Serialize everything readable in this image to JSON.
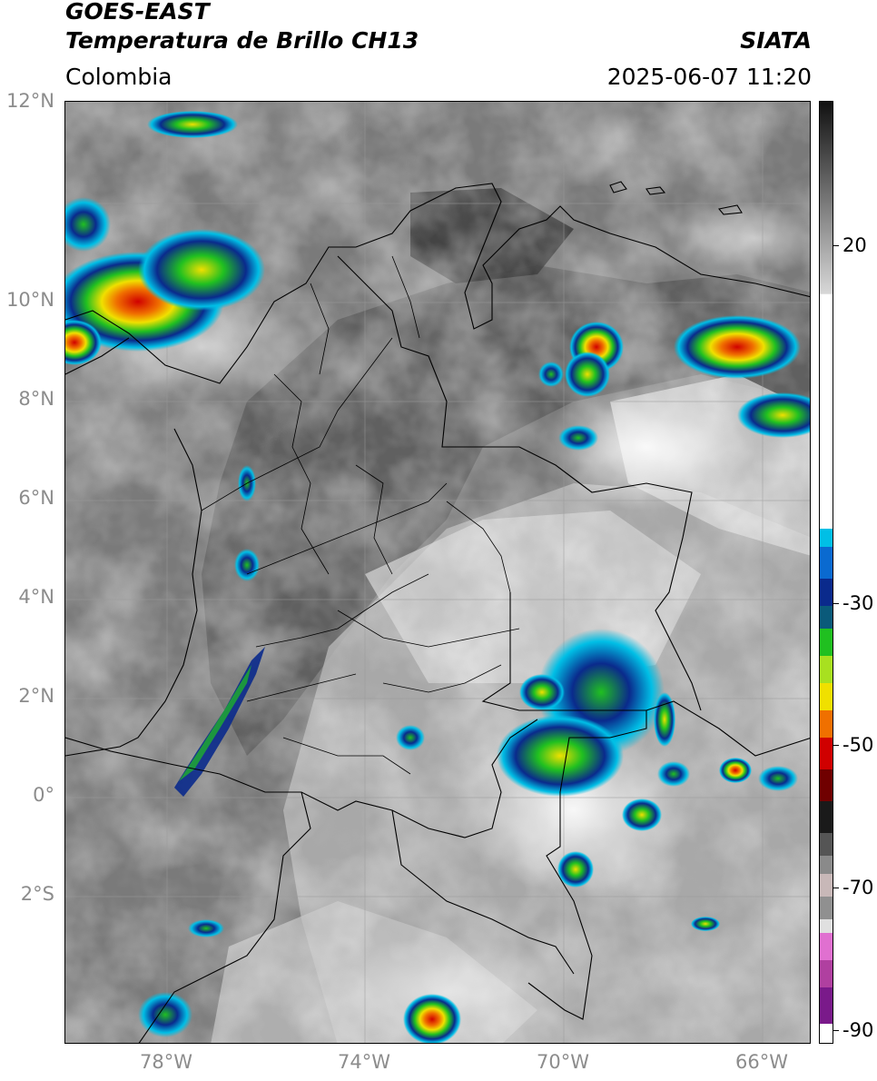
{
  "header": {
    "satellite": "GOES-EAST",
    "product": "Temperatura de Brillo CH13",
    "organization": "SIATA",
    "region": "Colombia",
    "timestamp": "2025-06-07 11:20"
  },
  "axes": {
    "lat_labels": [
      "12°N",
      "10°N",
      "8°N",
      "6°N",
      "4°N",
      "2°N",
      "0°",
      "2°S"
    ],
    "lon_labels": [
      "78°W",
      "74°W",
      "70°W",
      "66°W"
    ]
  },
  "colorbar": {
    "ticks": [
      "20",
      "-30",
      "-50",
      "-70",
      "-90"
    ],
    "units": "",
    "colors": {
      "warm_top": "#1a1a1a",
      "white": "#ffffff",
      "cyan": "#00bfe6",
      "blue": "#0a2a8c",
      "green": "#20c020",
      "yellow": "#f0e000",
      "orange": "#f07000",
      "red": "#d00000",
      "darkred": "#500000",
      "pink": "#e070d0",
      "purple": "#7a1a8a"
    }
  },
  "map": {
    "grid_lines": true,
    "background_gray": "#7f7f7f",
    "border_color": "#000000"
  }
}
